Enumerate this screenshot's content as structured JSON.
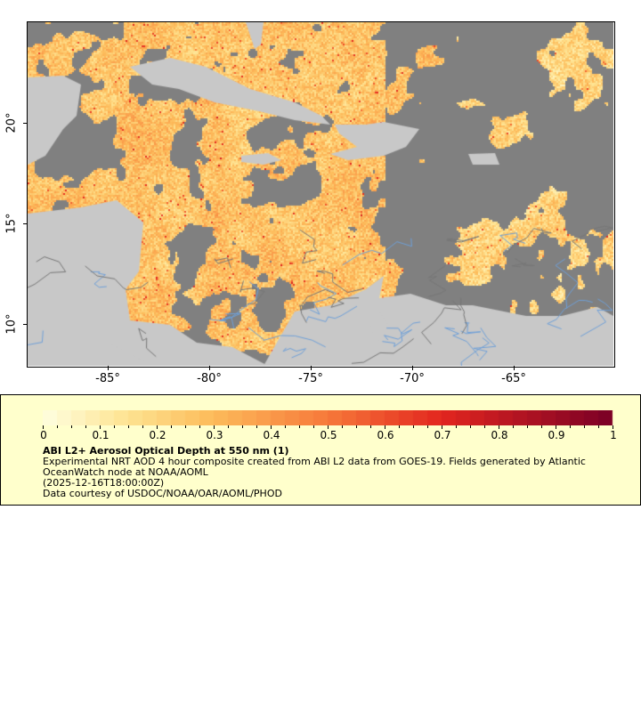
{
  "map": {
    "longitude_range": [
      -89,
      -60
    ],
    "latitude_range": [
      7.9,
      25
    ],
    "x_ticks": [
      "-85°",
      "-80°",
      "-75°",
      "-70°",
      "-65°"
    ],
    "y_ticks": [
      "20°",
      "15°",
      "10°"
    ],
    "colors": {
      "land": "#c8c8c8",
      "no_data": "#808080",
      "rivers": "#6fa0d8",
      "borders": "#777777"
    }
  },
  "legend": {
    "colorbar_range": [
      0,
      1
    ],
    "colorbar_ticks": [
      "0",
      "0.1",
      "0.2",
      "0.3",
      "0.4",
      "0.5",
      "0.6",
      "0.7",
      "0.8",
      "0.9",
      "1"
    ],
    "colorbar_colors": [
      "#ffffe0",
      "#fee391",
      "#fdbb5a",
      "#f7793a",
      "#e3261f",
      "#7a0026"
    ],
    "title": "ABI L2+ Aerosol Optical Depth at 550 nm (1)",
    "description_line1": "Experimental NRT AOD 4 hour composite created from ABI L2 data from GOES-19. Fields generated by Atlantic",
    "description_line2": "OceanWatch node at NOAA/AOML",
    "time": "(2025-12-16T18:00:00Z)",
    "credit": "Data courtesy of USDOC/NOAA/OAR/AOML/PHOD"
  }
}
